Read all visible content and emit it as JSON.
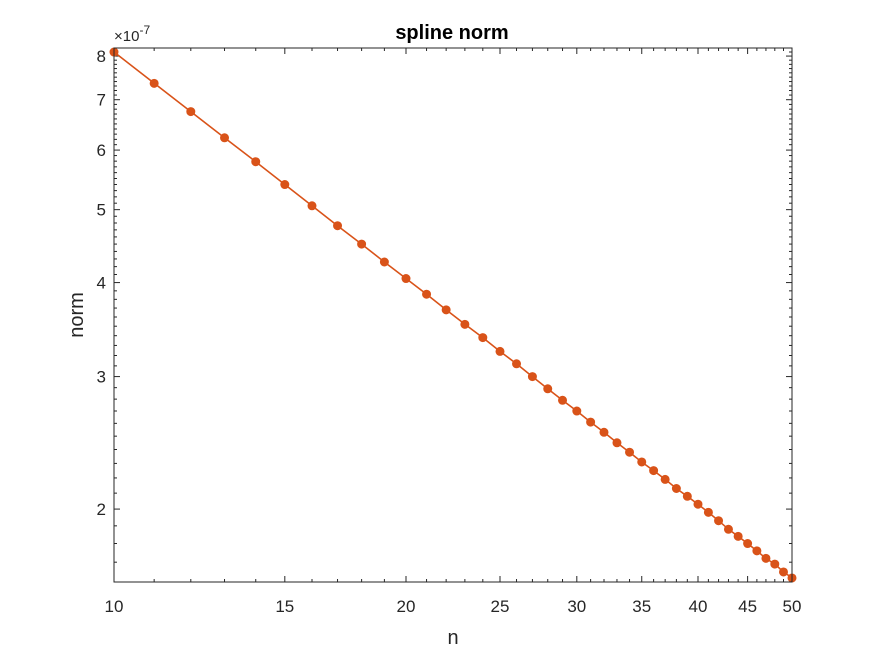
{
  "chart_data": {
    "type": "line",
    "title": "spline norm",
    "xlabel": "n",
    "ylabel": "norm",
    "x_scale": "log",
    "y_scale": "log",
    "y_multiplier_label": "×10",
    "y_multiplier_exponent": "-7",
    "xlim": [
      10,
      50
    ],
    "ylim": [
      1.6,
      8.2
    ],
    "x_ticks": [
      10,
      15,
      20,
      25,
      30,
      35,
      40,
      45,
      50
    ],
    "x_tick_labels": [
      "10",
      "15",
      "20",
      "25",
      "30",
      "35",
      "40",
      "45",
      "50"
    ],
    "y_ticks": [
      2,
      3,
      4,
      5,
      6,
      7,
      8
    ],
    "y_tick_labels": [
      "2",
      "3",
      "4",
      "5",
      "6",
      "7",
      "8"
    ],
    "grid": false,
    "line_color": "#D95319",
    "marker": "filled-circle",
    "series": [
      {
        "x": [
          10,
          11,
          12,
          13,
          14,
          15,
          16,
          17,
          18,
          19,
          20,
          21,
          22,
          23,
          24,
          25,
          26,
          27,
          28,
          29,
          30,
          31,
          32,
          33,
          34,
          35,
          36,
          37,
          38,
          39,
          40,
          41,
          42,
          43,
          44,
          45,
          46,
          47,
          48,
          49,
          50
        ],
        "y": [
          8.1,
          7.36,
          6.75,
          6.23,
          5.79,
          5.4,
          5.06,
          4.76,
          4.5,
          4.26,
          4.05,
          3.86,
          3.68,
          3.52,
          3.38,
          3.24,
          3.12,
          3.0,
          2.89,
          2.79,
          2.7,
          2.61,
          2.53,
          2.45,
          2.38,
          2.31,
          2.25,
          2.19,
          2.13,
          2.08,
          2.03,
          1.98,
          1.93,
          1.88,
          1.84,
          1.8,
          1.76,
          1.72,
          1.69,
          1.65,
          1.62
        ]
      }
    ]
  }
}
